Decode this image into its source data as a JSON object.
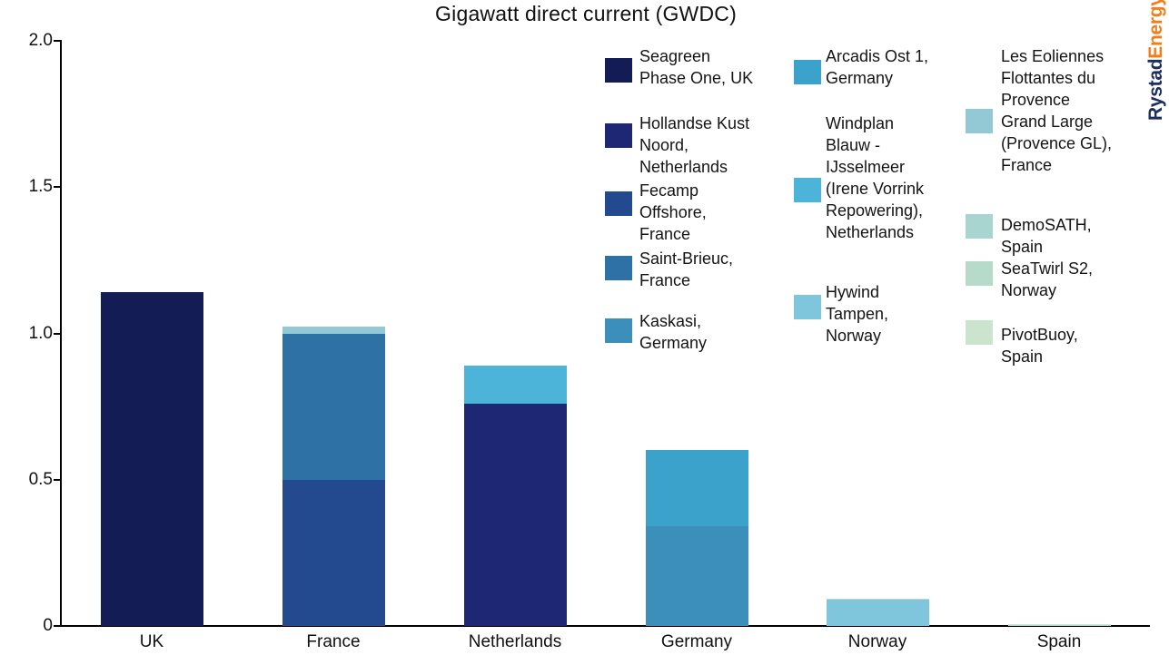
{
  "title": "Gigawatt direct current (GWDC)",
  "logo": {
    "part1": "Rystad",
    "part2": "Energy",
    "part1_color": "#1b2f5e",
    "part2_color": "#f07f1a"
  },
  "chart_data": {
    "type": "bar",
    "stacked": true,
    "title": "Gigawatt direct current (GWDC)",
    "xlabel": "",
    "ylabel": "",
    "categories": [
      "UK",
      "France",
      "Netherlands",
      "Germany",
      "Norway",
      "Spain"
    ],
    "series": [
      {
        "name": "Seagreen Phase One, UK",
        "color": "#141c55",
        "values": [
          1.14,
          0,
          0,
          0,
          0,
          0
        ]
      },
      {
        "name": "Hollandse Kust Noord, Netherlands",
        "color": "#1e2773",
        "values": [
          0,
          0,
          0.76,
          0,
          0,
          0
        ]
      },
      {
        "name": "Fecamp Offshore, France",
        "color": "#234a8f",
        "values": [
          0,
          0.5,
          0,
          0,
          0,
          0
        ]
      },
      {
        "name": "Saint-Brieuc, France",
        "color": "#2e71a4",
        "values": [
          0,
          0.5,
          0,
          0,
          0,
          0
        ]
      },
      {
        "name": "Kaskasi, Germany",
        "color": "#3b8fba",
        "values": [
          0,
          0,
          0,
          0.34,
          0,
          0
        ]
      },
      {
        "name": "Arcadis Ost 1, Germany",
        "color": "#3ba2cb",
        "values": [
          0,
          0,
          0,
          0.26,
          0,
          0
        ]
      },
      {
        "name": "Windplan Blauw - IJsselmeer (Irene Vorrink Repowering), Netherlands",
        "color": "#4cb4d8",
        "values": [
          0,
          0,
          0.13,
          0,
          0,
          0
        ]
      },
      {
        "name": "Hywind Tampen, Norway",
        "color": "#7fc5db",
        "values": [
          0,
          0,
          0,
          0,
          0.09,
          0
        ]
      },
      {
        "name": "Les Eoliennes Flottantes du Provence Grand Large (Provence GL), France",
        "color": "#92c9d4",
        "values": [
          0,
          0.025,
          0,
          0,
          0,
          0
        ]
      },
      {
        "name": "DemoSATH, Spain",
        "color": "#a9d5d0",
        "values": [
          0,
          0,
          0,
          0,
          0,
          0.002
        ]
      },
      {
        "name": "SeaTwirl S2, Norway",
        "color": "#b7dbca",
        "values": [
          0,
          0,
          0,
          0,
          0.001,
          0
        ]
      },
      {
        "name": "PivotBuoy, Spain",
        "color": "#cbe4cd",
        "values": [
          0,
          0,
          0,
          0,
          0,
          0.001
        ]
      }
    ],
    "totals": {
      "UK": 1.14,
      "France": 1.025,
      "Netherlands": 0.89,
      "Germany": 0.6,
      "Norway": 0.091,
      "Spain": 0.003
    },
    "ylim": [
      0,
      2.0
    ],
    "yticks": [
      0,
      0.5,
      1.0,
      1.5,
      2.0
    ],
    "ytick_labels": [
      "0",
      "0.5",
      "1.0",
      "1.5",
      "2.0"
    ],
    "grid": false,
    "legend_position": "upper-right, 3 columns",
    "legend": {
      "columns": [
        [
          {
            "series": 0,
            "lines": "Seagreen\nPhase One, UK"
          },
          {
            "series": 1,
            "lines": "Hollandse Kust\nNoord,\nNetherlands"
          },
          {
            "series": 2,
            "lines": "Fecamp\nOffshore,\nFrance"
          },
          {
            "series": 3,
            "lines": "Saint-Brieuc,\nFrance"
          },
          {
            "series": 4,
            "lines": "Kaskasi,\nGermany"
          }
        ],
        [
          {
            "series": 5,
            "lines": "Arcadis Ost 1,\nGermany"
          },
          {
            "series": 6,
            "lines": "Windplan\nBlauw -\nIJsselmeer\n(Irene Vorrink\nRepowering),\nNetherlands"
          },
          {
            "series": 7,
            "lines": "Hywind\nTampen,\nNorway"
          }
        ],
        [
          {
            "series": 8,
            "lines": "Les Eoliennes\nFlottantes du\nProvence\nGrand Large\n(Provence GL),\nFrance"
          },
          {
            "series": 9,
            "lines": "DemoSATH,\nSpain"
          },
          {
            "series": 10,
            "lines": "SeaTwirl S2,\nNorway"
          },
          {
            "series": 11,
            "lines": "PivotBuoy,\nSpain"
          }
        ]
      ]
    }
  }
}
